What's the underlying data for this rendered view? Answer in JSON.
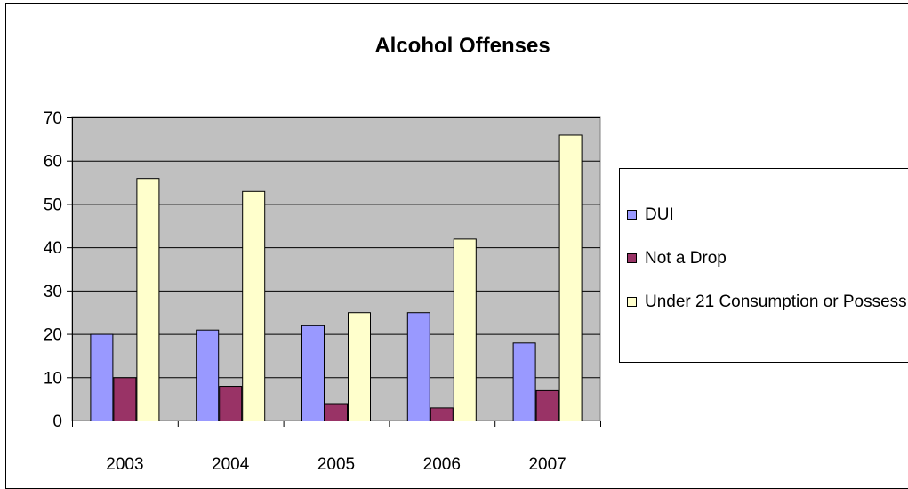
{
  "chart_data": {
    "type": "bar",
    "title": "Alcohol Offenses",
    "xlabel": "",
    "ylabel": "",
    "categories": [
      "2003",
      "2004",
      "2005",
      "2006",
      "2007"
    ],
    "series": [
      {
        "name": "DUI",
        "color": "#9999ff",
        "values": [
          20,
          21,
          22,
          25,
          18
        ]
      },
      {
        "name": "Not a Drop",
        "color": "#993366",
        "values": [
          10,
          8,
          4,
          3,
          7
        ]
      },
      {
        "name": "Under 21 Consumption or Possess",
        "color": "#ffffcc",
        "values": [
          56,
          53,
          25,
          42,
          66
        ]
      }
    ],
    "ylim": [
      0,
      70
    ],
    "yticks": [
      0,
      10,
      20,
      30,
      40,
      50,
      60,
      70
    ],
    "grid": true,
    "plot_background": "#c0c0c0",
    "legend_position": "right"
  }
}
